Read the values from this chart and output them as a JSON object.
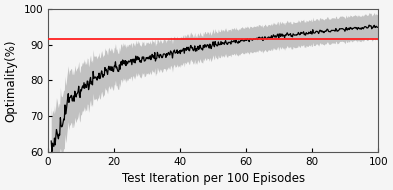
{
  "title": "",
  "xlabel": "Test Iteration per 100 Episodes",
  "ylabel": "Optimality(%)",
  "xlim": [
    0,
    100
  ],
  "ylim": [
    60,
    100
  ],
  "xticks": [
    0,
    20,
    40,
    60,
    80,
    100
  ],
  "yticks": [
    60,
    70,
    80,
    90,
    100
  ],
  "red_line_y": 91.5,
  "line_color": "#000000",
  "shade_color": "#b8b8b8",
  "red_color": "#ff2020",
  "background_color": "#f5f5f5",
  "xlabel_fontsize": 8.5,
  "ylabel_fontsize": 8.5,
  "tick_fontsize": 7.5
}
